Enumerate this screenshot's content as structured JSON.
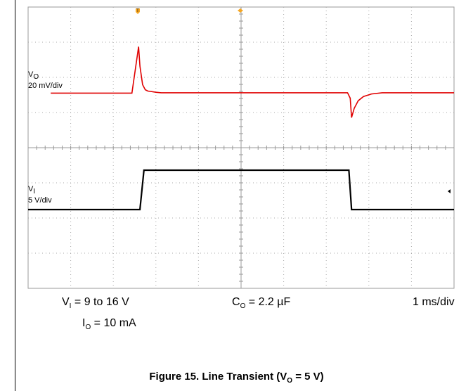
{
  "chart_data": {
    "type": "line",
    "title": "Figure 15. Line Transient (V",
    "title_sub": "O",
    "title_tail": " = 5 V)",
    "timebase": "1 ms/div",
    "grid": true,
    "divisions": {
      "x": 10,
      "y": 8
    },
    "series": [
      {
        "name": "V",
        "name_sub": "O",
        "scale": "20 mV/div",
        "color": "#e00000",
        "x": [
          0.85,
          3.9,
          4.15,
          4.2,
          4.3,
          4.4,
          4.5,
          4.6,
          4.8,
          5.0,
          12.0,
          12.1,
          12.15,
          12.25,
          12.4,
          12.6,
          12.9,
          13.3,
          16.0
        ],
        "y": [
          -0.1,
          -0.1,
          2.65,
          1.5,
          0.4,
          0.1,
          0.02,
          0.0,
          -0.05,
          -0.08,
          -0.08,
          -0.4,
          -1.55,
          -1.0,
          -0.55,
          -0.3,
          -0.15,
          -0.08,
          -0.08
        ]
      },
      {
        "name": "V",
        "name_sub": "I",
        "scale": "5 V/div",
        "color": "#000000",
        "x": [
          0.0,
          4.2,
          4.35,
          4.38,
          16.0
        ],
        "y": [
          9,
          9,
          16,
          16,
          16
        ]
      }
    ],
    "vi_step_down_x": 12.05
  },
  "conditions": {
    "vi": "V",
    "vi_sub": "I",
    "vi_tail": " = 9 to 16 V",
    "io": "I",
    "io_sub": "O",
    "io_tail": " = 10 mA",
    "co": "C",
    "co_sub": "O",
    "co_tail": " = 2.2 µF",
    "timebase": "1 ms/div"
  }
}
